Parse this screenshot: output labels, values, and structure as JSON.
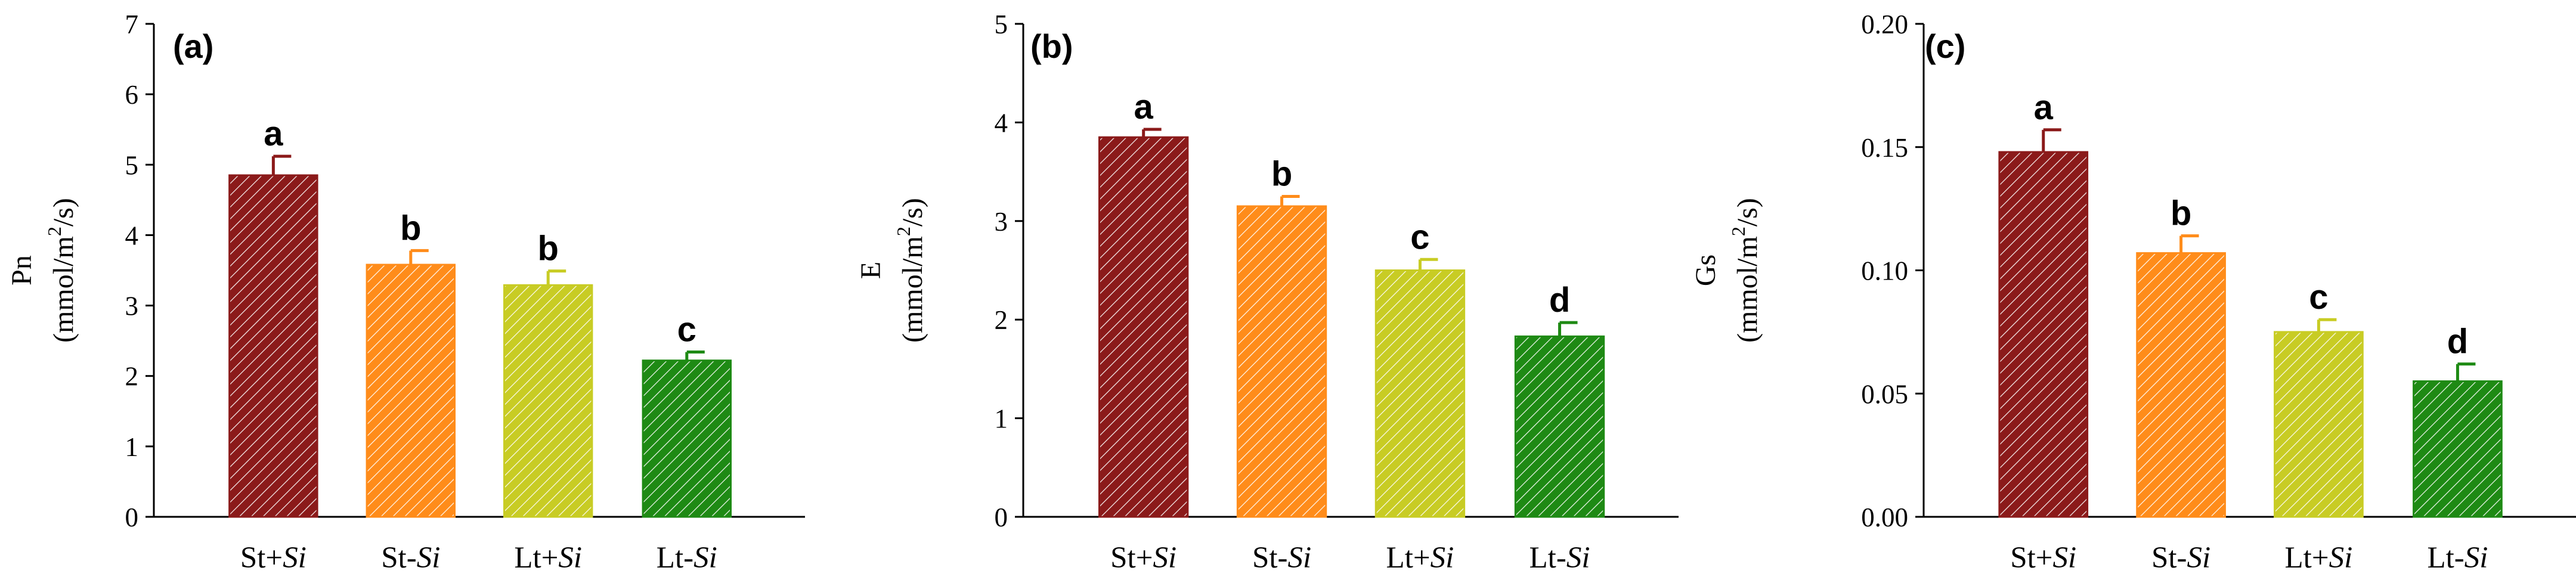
{
  "chart_data": [
    {
      "type": "bar",
      "panel": "(a)",
      "ylabel_line1": "Pn",
      "ylabel_unit_pre": "(mmol/m",
      "ylabel_unit_sup": "2",
      "ylabel_unit_post": "/s)",
      "ylim": [
        0,
        7
      ],
      "yticks": [
        "0",
        "1",
        "2",
        "3",
        "4",
        "5",
        "6",
        "7"
      ],
      "categories": [
        {
          "base": "St+",
          "italic": "Si"
        },
        {
          "base": "St-",
          "italic": "Si"
        },
        {
          "base": "Lt+",
          "italic": "Si"
        },
        {
          "base": "Lt-",
          "italic": "Si"
        }
      ],
      "values": [
        4.85,
        3.58,
        3.29,
        2.22
      ],
      "errors": [
        0.27,
        0.2,
        0.2,
        0.12
      ],
      "significance": [
        "a",
        "b",
        "b",
        "c"
      ]
    },
    {
      "type": "bar",
      "panel": "(b)",
      "ylabel_line1": "E",
      "ylabel_unit_pre": "(mmol/m",
      "ylabel_unit_sup": "2",
      "ylabel_unit_post": "/s)",
      "ylim": [
        0,
        5
      ],
      "yticks": [
        "0",
        "1",
        "2",
        "3",
        "4",
        "5"
      ],
      "categories": [
        {
          "base": "St+",
          "italic": "Si"
        },
        {
          "base": "St-",
          "italic": "Si"
        },
        {
          "base": "Lt+",
          "italic": "Si"
        },
        {
          "base": "Lt-",
          "italic": "Si"
        }
      ],
      "values": [
        3.85,
        3.15,
        2.5,
        1.83
      ],
      "errors": [
        0.08,
        0.1,
        0.11,
        0.14
      ],
      "significance": [
        "a",
        "b",
        "c",
        "d"
      ]
    },
    {
      "type": "bar",
      "panel": "(c)",
      "ylabel_line1": "Gs",
      "ylabel_unit_pre": "(mmol/m",
      "ylabel_unit_sup": "2",
      "ylabel_unit_post": "/s)",
      "ylim": [
        0,
        0.2
      ],
      "yticks": [
        "0.00",
        "0.05",
        "0.10",
        "0.15",
        "0.20"
      ],
      "categories": [
        {
          "base": "St+",
          "italic": "Si"
        },
        {
          "base": "St-",
          "italic": "Si"
        },
        {
          "base": "Lt+",
          "italic": "Si"
        },
        {
          "base": "Lt-",
          "italic": "Si"
        }
      ],
      "values": [
        0.148,
        0.107,
        0.075,
        0.055
      ],
      "errors": [
        0.009,
        0.007,
        0.005,
        0.007
      ],
      "significance": [
        "a",
        "b",
        "c",
        "d"
      ]
    }
  ],
  "colors": {
    "bars": [
      "#8B1A1A",
      "#FF8C1A",
      "#C8CC24",
      "#1E8A14"
    ],
    "errorbars": [
      "#8B1A1A",
      "#FF8C1A",
      "#C8CC24",
      "#1E8A14"
    ],
    "hatch": "#ffffff",
    "axis": "#000000"
  }
}
